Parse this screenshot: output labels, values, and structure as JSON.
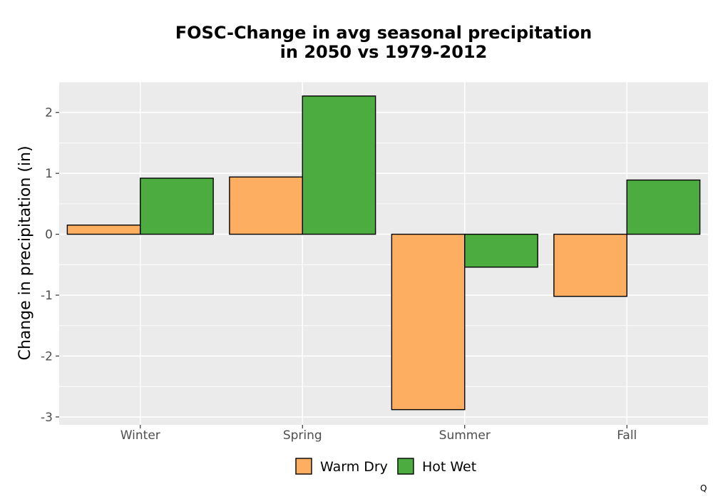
{
  "chart_data": {
    "type": "bar",
    "title_lines": [
      "FOSC-Change in avg seasonal precipitation",
      "in 2050 vs 1979-2012"
    ],
    "xlabel": "",
    "ylabel": "Change in precipitation (in)",
    "categories": [
      "Winter",
      "Spring",
      "Summer",
      "Fall"
    ],
    "series": [
      {
        "name": "Warm Dry",
        "color": "#FDAE61",
        "values": [
          0.15,
          0.94,
          -2.88,
          -1.02
        ]
      },
      {
        "name": "Hot Wet",
        "color": "#4DAC3F",
        "values": [
          0.92,
          2.27,
          -0.54,
          0.89
        ]
      }
    ],
    "ylim": [
      -3.13,
      2.5
    ],
    "yticks": [
      2,
      1,
      0,
      -1,
      -2,
      -3
    ],
    "ytick_labels": [
      "2",
      "1",
      "0",
      "-1",
      "-2",
      "-3"
    ],
    "grid": true,
    "legend_position": "bottom"
  },
  "corner_mark": "Q"
}
